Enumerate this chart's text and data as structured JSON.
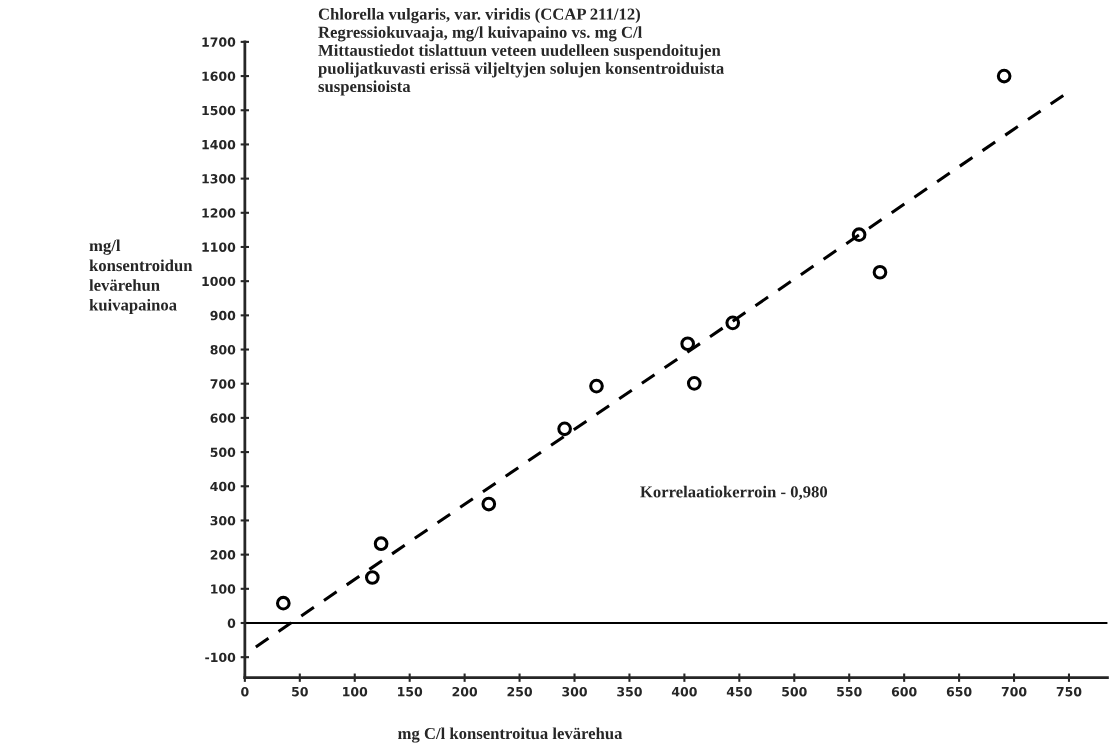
{
  "chart_data": {
    "type": "scatter",
    "title": "Chlorella vulgaris, var. viridis (CCAP 211/12)\nRegressiokuvaaja, mg/l kuivapaino vs. mg C/l\nMittaustiedot tislattuun veteen uudelleen suspendoitujen\npuolijatkuvasti erissä viljeltyjen solujen konsentroiduista\nsuspensioista",
    "xlabel": "mg C/l konsentroitua levärehua",
    "ylabel": "mg/l\nkonsentroidun\nlevärehun\nkuivapainoa",
    "annotations": [
      "Korrelaatiokerroin - 0,980"
    ],
    "series": [
      {
        "color": "#000000",
        "marker": "circle",
        "x": [
          35,
          116,
          124,
          222,
          291,
          320,
          403,
          409,
          444,
          559,
          578,
          691
        ],
        "values": [
          58,
          133,
          232,
          348,
          568,
          693,
          817,
          701,
          878,
          1136,
          1026,
          1600
        ]
      },
      {
        "type": "line",
        "color": "#000000",
        "marker": "none",
        "line_style": "dashed",
        "x": [
          10,
          747
        ],
        "values": [
          -70,
          1548
        ]
      }
    ],
    "xlim": [
      0,
      785
    ],
    "ylim": [
      -160,
      1700
    ],
    "xticks": [
      0,
      50,
      100,
      150,
      200,
      250,
      300,
      350,
      400,
      450,
      500,
      550,
      600,
      650,
      700,
      750
    ],
    "yticks": [
      -100,
      0,
      100,
      200,
      300,
      400,
      500,
      600,
      700,
      800,
      900,
      1000,
      1100,
      1200,
      1300,
      1400,
      1500,
      1600,
      1700
    ],
    "ref_lines": [
      {
        "axis": "y",
        "value": 0,
        "color": "#000000"
      }
    ],
    "grid": false
  }
}
